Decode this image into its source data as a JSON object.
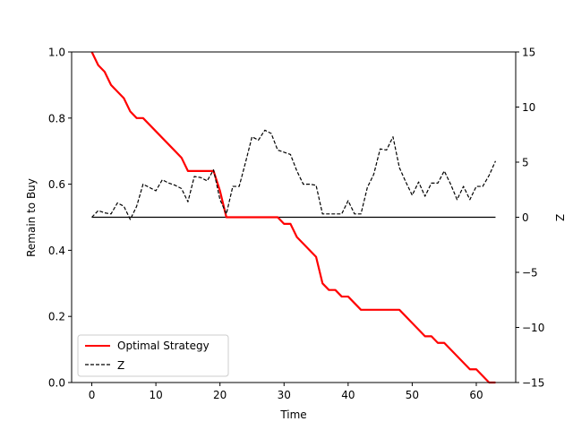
{
  "chart_data": {
    "type": "line",
    "xlabel": "Time",
    "ylabel_left": "Remain to Buy",
    "ylabel_right": "Z",
    "xlim": [
      -3.15,
      66.15
    ],
    "ylim_left": [
      0,
      1
    ],
    "ylim_right": [
      -15,
      15
    ],
    "x_ticks": [
      0,
      10,
      20,
      30,
      40,
      50,
      60
    ],
    "y_ticks_left": [
      0.0,
      0.2,
      0.4,
      0.6,
      0.8,
      1.0
    ],
    "y_ticks_left_labels": [
      "0.0",
      "0.2",
      "0.4",
      "0.6",
      "0.8",
      "1.0"
    ],
    "y_ticks_right": [
      -15,
      -10,
      -5,
      0,
      5,
      10,
      15
    ],
    "y_ticks_right_labels": [
      "−15",
      "−10",
      "−5",
      "0",
      "5",
      "10",
      "15"
    ],
    "grid": false,
    "legend_position": "lower-left",
    "reference_line": {
      "axis": "right",
      "value": 0,
      "x_range": [
        0,
        63
      ],
      "color": "#000000"
    },
    "series": [
      {
        "name": "Optimal Strategy",
        "axis": "left",
        "color": "#ff0000",
        "style": "solid",
        "x": [
          0,
          1,
          2,
          3,
          4,
          5,
          6,
          7,
          8,
          9,
          10,
          11,
          12,
          13,
          14,
          15,
          16,
          17,
          18,
          19,
          20,
          21,
          22,
          23,
          24,
          25,
          26,
          27,
          28,
          29,
          30,
          31,
          32,
          33,
          34,
          35,
          36,
          37,
          38,
          39,
          40,
          41,
          42,
          43,
          44,
          45,
          46,
          47,
          48,
          49,
          50,
          51,
          52,
          53,
          54,
          55,
          56,
          57,
          58,
          59,
          60,
          61,
          62,
          63
        ],
        "y": [
          1.0,
          0.96,
          0.94,
          0.9,
          0.88,
          0.86,
          0.82,
          0.8,
          0.8,
          0.78,
          0.76,
          0.74,
          0.72,
          0.7,
          0.68,
          0.64,
          0.64,
          0.64,
          0.64,
          0.64,
          0.58,
          0.5,
          0.5,
          0.5,
          0.5,
          0.5,
          0.5,
          0.5,
          0.5,
          0.5,
          0.48,
          0.48,
          0.44,
          0.42,
          0.4,
          0.38,
          0.3,
          0.28,
          0.28,
          0.26,
          0.26,
          0.24,
          0.22,
          0.22,
          0.22,
          0.22,
          0.22,
          0.22,
          0.22,
          0.2,
          0.18,
          0.16,
          0.14,
          0.14,
          0.12,
          0.12,
          0.1,
          0.08,
          0.06,
          0.04,
          0.04,
          0.02,
          0.0,
          0.0
        ]
      },
      {
        "name": "Z",
        "axis": "right",
        "color": "#000000",
        "style": "dashed",
        "x": [
          0,
          1,
          2,
          3,
          4,
          5,
          6,
          7,
          8,
          9,
          10,
          11,
          12,
          13,
          14,
          15,
          16,
          17,
          18,
          19,
          20,
          21,
          22,
          23,
          24,
          25,
          26,
          27,
          28,
          29,
          30,
          31,
          32,
          33,
          34,
          35,
          36,
          37,
          38,
          39,
          40,
          41,
          42,
          43,
          44,
          45,
          46,
          47,
          48,
          49,
          50,
          51,
          52,
          53,
          54,
          55,
          56,
          57,
          58,
          59,
          60,
          61,
          62,
          63
        ],
        "y": [
          0.0,
          0.6,
          0.4,
          0.3,
          1.3,
          1.0,
          -0.2,
          1.0,
          3.0,
          2.7,
          2.4,
          3.4,
          3.1,
          2.9,
          2.6,
          1.4,
          3.7,
          3.6,
          3.3,
          4.3,
          1.6,
          0.3,
          2.8,
          2.8,
          5.0,
          7.3,
          7.0,
          7.9,
          7.6,
          6.1,
          5.9,
          5.7,
          4.2,
          3.0,
          3.0,
          2.9,
          0.3,
          0.3,
          0.3,
          0.3,
          1.5,
          0.3,
          0.3,
          2.7,
          3.9,
          6.2,
          6.1,
          7.3,
          4.5,
          3.2,
          2.0,
          3.2,
          1.9,
          3.1,
          3.1,
          4.2,
          3.0,
          1.6,
          2.8,
          1.6,
          2.8,
          2.8,
          3.8,
          5.1
        ]
      }
    ]
  }
}
